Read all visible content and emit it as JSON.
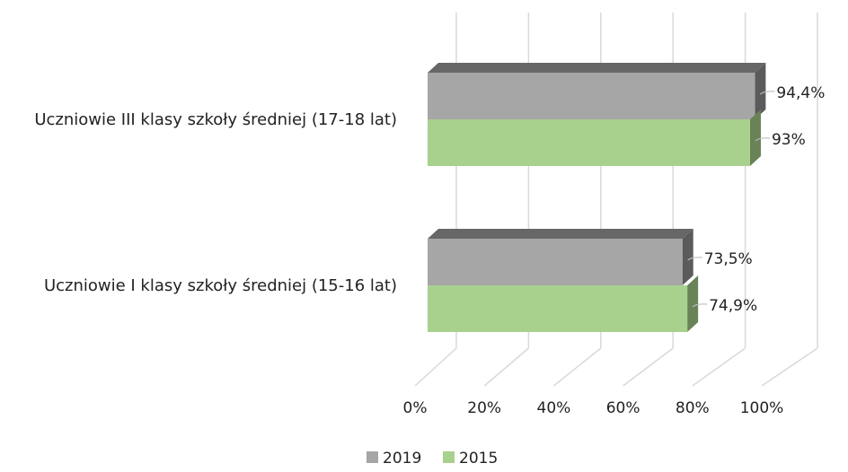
{
  "chart_data": {
    "type": "bar",
    "orientation": "horizontal",
    "style": "3d",
    "title": "",
    "xlabel": "",
    "ylabel": "",
    "categories": [
      "Uczniowie III klasy szkoły średniej (17-18 lat)",
      "Uczniowie I klasy szkoły średniej (15-16 lat)"
    ],
    "series": [
      {
        "name": "2019",
        "values": [
          94.4,
          73.5
        ],
        "labels": [
          "94,4%",
          "73,5%"
        ],
        "color": "#a6a6a6"
      },
      {
        "name": "2015",
        "values": [
          93,
          74.9
        ],
        "labels": [
          "93%",
          "74,9%"
        ],
        "color": "#a9d18e"
      }
    ],
    "xlim": [
      0,
      100
    ],
    "x_ticks": [
      {
        "value": 0,
        "label": "0%"
      },
      {
        "value": 20,
        "label": "20%"
      },
      {
        "value": 40,
        "label": "40%"
      },
      {
        "value": 60,
        "label": "60%"
      },
      {
        "value": 80,
        "label": "80%"
      },
      {
        "value": 100,
        "label": "100%"
      }
    ],
    "grid": true,
    "legend": "bottom"
  }
}
